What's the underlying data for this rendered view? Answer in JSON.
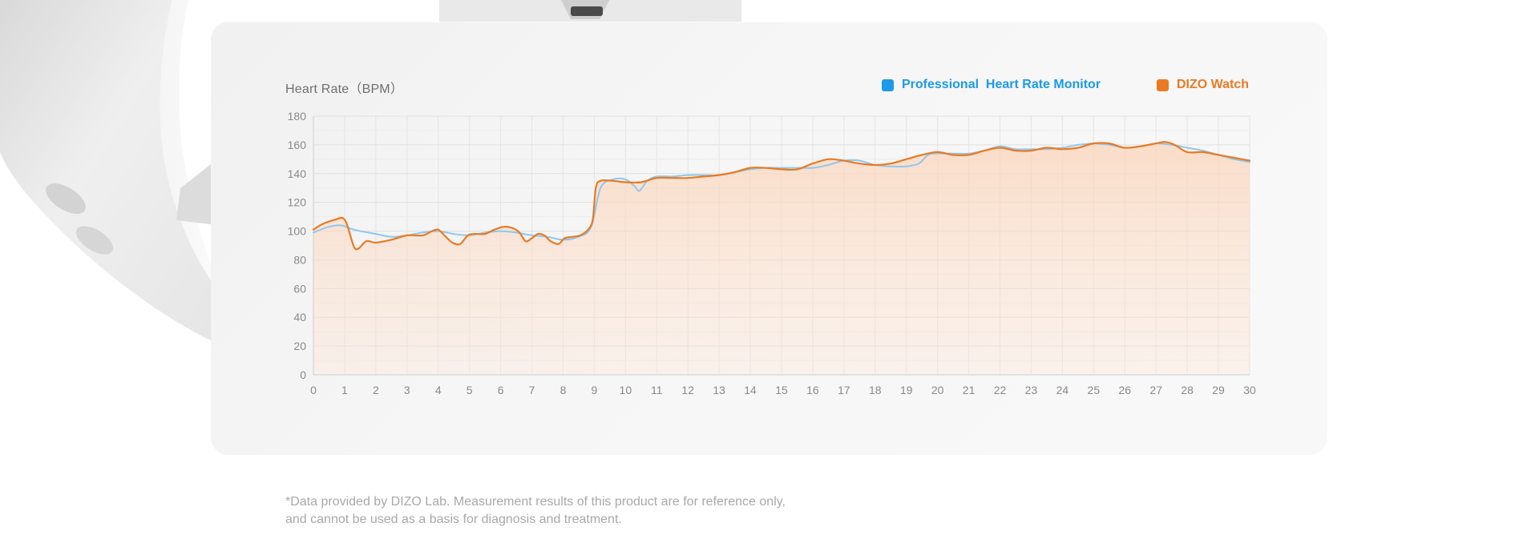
{
  "chart_data": {
    "type": "line",
    "title": "",
    "ylabel": "Heart Rate（BPM）",
    "xlabel": "",
    "xlim": [
      0,
      30
    ],
    "ylim": [
      0,
      180
    ],
    "x_ticks": [
      0,
      1,
      2,
      3,
      4,
      5,
      6,
      7,
      8,
      9,
      10,
      11,
      12,
      13,
      14,
      15,
      16,
      17,
      18,
      19,
      20,
      21,
      22,
      23,
      24,
      25,
      26,
      27,
      28,
      29,
      30
    ],
    "y_ticks": [
      0,
      20,
      40,
      60,
      80,
      100,
      120,
      140,
      160,
      180
    ],
    "grid": true,
    "legend_position": "top-right",
    "series": [
      {
        "name": "Professional  Heart Rate Monitor",
        "color": "#8ec8ee",
        "points": [
          [
            0,
            99
          ],
          [
            0.5,
            103
          ],
          [
            0.9,
            104
          ],
          [
            1.3,
            101
          ],
          [
            2,
            98
          ],
          [
            2.5,
            96
          ],
          [
            3,
            97
          ],
          [
            3.5,
            99
          ],
          [
            4,
            100
          ],
          [
            4.5,
            98
          ],
          [
            5,
            97
          ],
          [
            5.5,
            99
          ],
          [
            6,
            100
          ],
          [
            6.5,
            99
          ],
          [
            7,
            97
          ],
          [
            7.5,
            96
          ],
          [
            8,
            94
          ],
          [
            8.5,
            96
          ],
          [
            8.9,
            103
          ],
          [
            9.2,
            130
          ],
          [
            9.6,
            136
          ],
          [
            10,
            136
          ],
          [
            10.3,
            131
          ],
          [
            10.45,
            128
          ],
          [
            10.7,
            135
          ],
          [
            11,
            138
          ],
          [
            11.5,
            138
          ],
          [
            12,
            139
          ],
          [
            12.5,
            139
          ],
          [
            13,
            139
          ],
          [
            13.5,
            141
          ],
          [
            14,
            143
          ],
          [
            14.5,
            144
          ],
          [
            15,
            144
          ],
          [
            15.5,
            144
          ],
          [
            16,
            144
          ],
          [
            16.5,
            146
          ],
          [
            17,
            149
          ],
          [
            17.5,
            149
          ],
          [
            18,
            146
          ],
          [
            18.5,
            145
          ],
          [
            19,
            145
          ],
          [
            19.4,
            147
          ],
          [
            19.7,
            153
          ],
          [
            20,
            154
          ],
          [
            20.5,
            154
          ],
          [
            21,
            154
          ],
          [
            21.5,
            156
          ],
          [
            22,
            159
          ],
          [
            22.5,
            157
          ],
          [
            23,
            157
          ],
          [
            23.5,
            157
          ],
          [
            24,
            158
          ],
          [
            24.5,
            160
          ],
          [
            25,
            161
          ],
          [
            25.5,
            160
          ],
          [
            26,
            158
          ],
          [
            26.5,
            159
          ],
          [
            27,
            161
          ],
          [
            27.5,
            160
          ],
          [
            28,
            158
          ],
          [
            28.5,
            156
          ],
          [
            29,
            153
          ],
          [
            29.5,
            150
          ],
          [
            30,
            148
          ]
        ]
      },
      {
        "name": "DIZO Watch",
        "color": "#ea7a22",
        "points": [
          [
            0,
            101
          ],
          [
            0.3,
            105
          ],
          [
            0.7,
            108
          ],
          [
            0.95,
            109
          ],
          [
            1.1,
            103
          ],
          [
            1.3,
            89
          ],
          [
            1.45,
            88
          ],
          [
            1.7,
            93
          ],
          [
            2,
            92
          ],
          [
            2.5,
            94
          ],
          [
            3,
            97
          ],
          [
            3.5,
            97
          ],
          [
            3.8,
            100
          ],
          [
            4,
            101
          ],
          [
            4.2,
            97
          ],
          [
            4.45,
            92
          ],
          [
            4.7,
            91
          ],
          [
            4.95,
            97
          ],
          [
            5.2,
            98
          ],
          [
            5.5,
            98
          ],
          [
            5.8,
            101
          ],
          [
            6.1,
            103
          ],
          [
            6.4,
            102
          ],
          [
            6.6,
            99
          ],
          [
            6.8,
            93
          ],
          [
            7,
            95
          ],
          [
            7.2,
            98
          ],
          [
            7.4,
            97
          ],
          [
            7.6,
            93
          ],
          [
            7.85,
            91
          ],
          [
            8.05,
            95
          ],
          [
            8.3,
            96
          ],
          [
            8.55,
            97
          ],
          [
            8.8,
            101
          ],
          [
            8.95,
            108
          ],
          [
            9.05,
            130
          ],
          [
            9.2,
            135
          ],
          [
            9.6,
            135
          ],
          [
            10,
            134
          ],
          [
            10.5,
            134
          ],
          [
            11,
            137
          ],
          [
            11.5,
            137
          ],
          [
            12,
            137
          ],
          [
            12.5,
            138
          ],
          [
            13,
            139
          ],
          [
            13.5,
            141
          ],
          [
            14,
            144
          ],
          [
            14.5,
            144
          ],
          [
            15,
            143
          ],
          [
            15.5,
            143
          ],
          [
            16,
            147
          ],
          [
            16.5,
            150
          ],
          [
            17,
            149
          ],
          [
            17.5,
            147
          ],
          [
            18,
            146
          ],
          [
            18.5,
            147
          ],
          [
            19,
            150
          ],
          [
            19.5,
            153
          ],
          [
            20,
            155
          ],
          [
            20.5,
            153
          ],
          [
            21,
            153
          ],
          [
            21.5,
            156
          ],
          [
            22,
            158
          ],
          [
            22.5,
            156
          ],
          [
            23,
            156
          ],
          [
            23.5,
            158
          ],
          [
            24,
            157
          ],
          [
            24.5,
            158
          ],
          [
            25,
            161
          ],
          [
            25.5,
            161
          ],
          [
            26,
            158
          ],
          [
            26.5,
            159
          ],
          [
            27,
            161
          ],
          [
            27.3,
            162
          ],
          [
            27.6,
            160
          ],
          [
            28,
            155
          ],
          [
            28.5,
            155
          ],
          [
            29,
            153
          ],
          [
            29.5,
            151
          ],
          [
            30,
            149
          ]
        ]
      }
    ],
    "area_fill_under": "DIZO Watch",
    "area_fill_color": "#fbd9c2"
  },
  "footnote": {
    "line1": "*Data provided by DIZO Lab. Measurement results of this product are for reference only,",
    "line2": "and cannot be used as a basis for diagnosis and treatment."
  }
}
